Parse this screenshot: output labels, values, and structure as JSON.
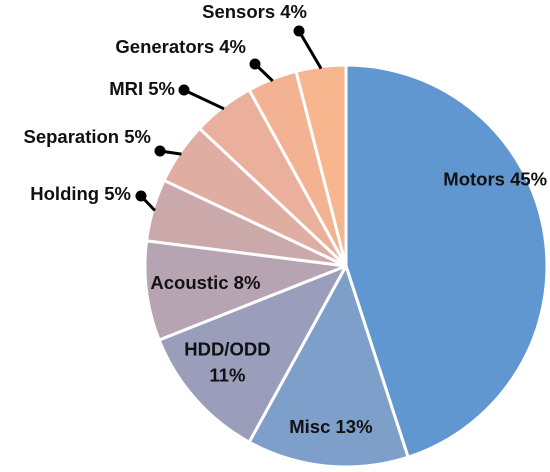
{
  "chart_data": {
    "type": "pie",
    "title": "",
    "slices": [
      {
        "label": "Motors",
        "value": 45,
        "text": "Motors 45%",
        "color": "#6097d1"
      },
      {
        "label": "Misc",
        "value": 13,
        "text": "Misc 13%",
        "color": "#7f9fcb"
      },
      {
        "label": "HDD/ODD",
        "value": 11,
        "text": "HDD/ODD 11%",
        "color": "#9a9eba"
      },
      {
        "label": "Acoustic",
        "value": 8,
        "text": "Acoustic 8%",
        "color": "#b7a4b2"
      },
      {
        "label": "Holding",
        "value": 5,
        "text": "Holding 5%",
        "color": "#cba9ab"
      },
      {
        "label": "Separation",
        "value": 5,
        "text": "Separation 5%",
        "color": "#e0ada3"
      },
      {
        "label": "MRI",
        "value": 5,
        "text": "MRI 5%",
        "color": "#ebb09c"
      },
      {
        "label": "Generators",
        "value": 4,
        "text": "Generators 4%",
        "color": "#f3b393"
      },
      {
        "label": "Sensors",
        "value": 4,
        "text": "Sensors 4%",
        "color": "#f7b68e"
      }
    ],
    "legend": "none"
  }
}
